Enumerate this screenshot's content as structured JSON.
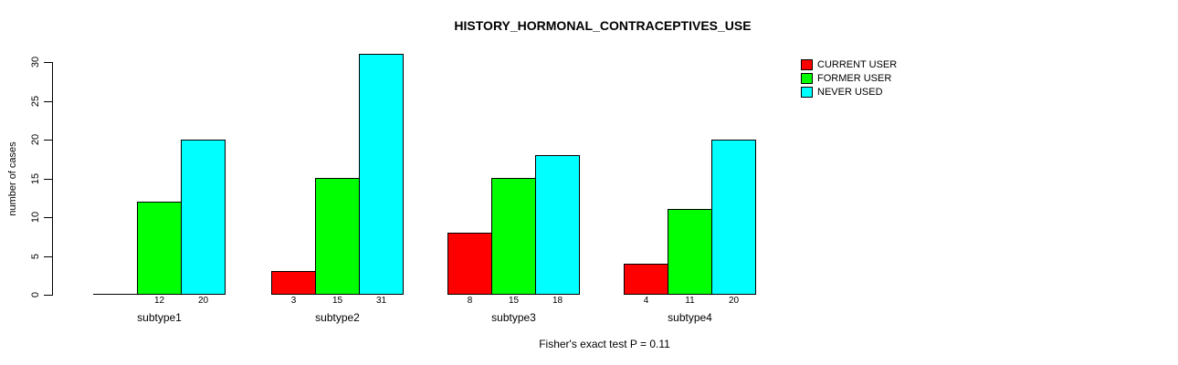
{
  "chart_data": {
    "type": "bar",
    "title": "HISTORY_HORMONAL_CONTRACEPTIVES_USE",
    "ylabel": "number of cases",
    "xlabel": "",
    "footnote": "Fisher's exact test P = 0.11",
    "categories": [
      "subtype1",
      "subtype2",
      "subtype3",
      "subtype4"
    ],
    "series": [
      {
        "name": "CURRENT USER",
        "color": "#ff0000",
        "values": [
          0,
          3,
          8,
          4
        ]
      },
      {
        "name": "FORMER USER",
        "color": "#00ff00",
        "values": [
          12,
          15,
          15,
          11
        ]
      },
      {
        "name": "NEVER USED",
        "color": "#00ffff",
        "values": [
          20,
          31,
          18,
          20
        ]
      }
    ],
    "ylim": [
      0,
      30
    ],
    "yticks": [
      0,
      5,
      10,
      15,
      20,
      25,
      30
    ],
    "grid": false,
    "legend_position": "top-right",
    "value_labels_under_bars": true,
    "zero_values_unlabeled": true,
    "bar_border_color": "#000000",
    "background_color": "#ffffff"
  }
}
